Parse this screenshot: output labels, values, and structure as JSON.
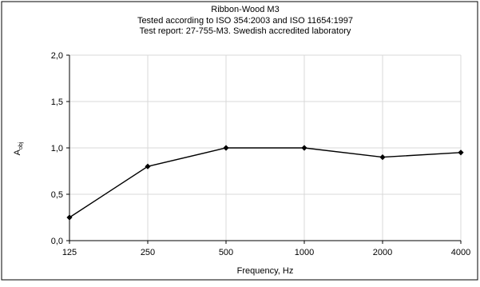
{
  "chart_data": {
    "type": "line",
    "title": [
      "Ribbon-Wood M3",
      "Tested according to ISO 354:2003 and ISO 11654:1997",
      "Test report: 27-755-M3. Swedish accredited laboratory"
    ],
    "xlabel": "Frequency, Hz",
    "ylabel": {
      "main": "A",
      "sub": "obj"
    },
    "categories": [
      "125",
      "250",
      "500",
      "1000",
      "2000",
      "4000"
    ],
    "series": [
      {
        "values": [
          0.25,
          0.8,
          1.0,
          1.0,
          0.9,
          0.95
        ]
      }
    ],
    "ylim": [
      0,
      2
    ],
    "yticks": [
      "0,0",
      "0,5",
      "1,0",
      "1,5",
      "2,0"
    ],
    "ytick_values": [
      0,
      0.5,
      1.0,
      1.5,
      2.0
    ],
    "grid": {
      "vertical": true,
      "horizontal": true
    },
    "marker": "diamond",
    "line_color": "#000000",
    "grid_color": "#d9d9d9"
  }
}
